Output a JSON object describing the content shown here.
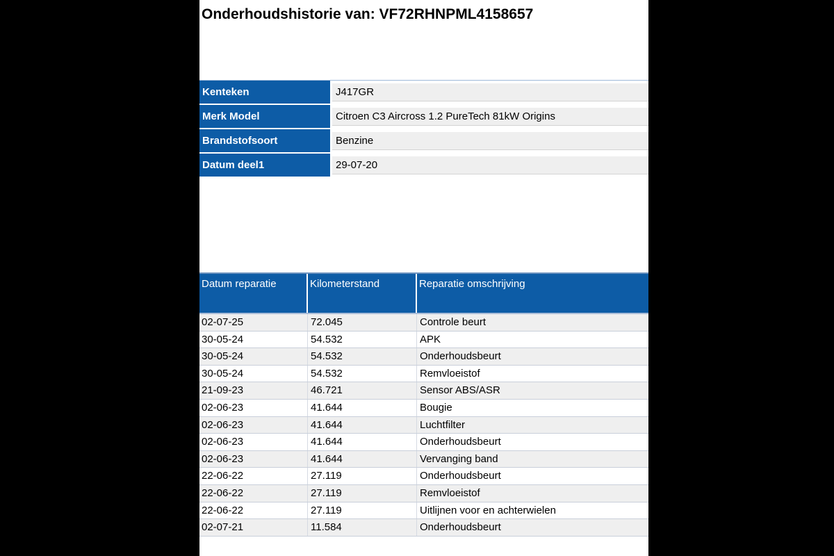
{
  "title": "Onderhoudshistorie van: VF72RHNPML4158657",
  "vehicle_info": {
    "rows": [
      {
        "label": "Kenteken",
        "value": "J417GR"
      },
      {
        "label": "Merk Model",
        "value": "Citroen C3 Aircross 1.2 PureTech 81kW Origins"
      },
      {
        "label": "Brandstofsoort",
        "value": "Benzine"
      },
      {
        "label": "Datum deel1",
        "value": "29-07-20"
      }
    ]
  },
  "history": {
    "columns": [
      "Datum reparatie",
      "Kilometerstand",
      "Reparatie omschrijving"
    ],
    "rows": [
      [
        "02-07-25",
        "72.045",
        "Controle beurt"
      ],
      [
        "30-05-24",
        "54.532",
        "APK"
      ],
      [
        "30-05-24",
        "54.532",
        "Onderhoudsbeurt"
      ],
      [
        "30-05-24",
        "54.532",
        "Remvloeistof"
      ],
      [
        "21-09-23",
        "46.721",
        "Sensor ABS/ASR"
      ],
      [
        "02-06-23",
        "41.644",
        "Bougie"
      ],
      [
        "02-06-23",
        "41.644",
        "Luchtfilter"
      ],
      [
        "02-06-23",
        "41.644",
        "Onderhoudsbeurt"
      ],
      [
        "02-06-23",
        "41.644",
        "Vervanging band"
      ],
      [
        "22-06-22",
        "27.119",
        "Onderhoudsbeurt"
      ],
      [
        "22-06-22",
        "27.119",
        "Remvloeistof"
      ],
      [
        "22-06-22",
        "27.119",
        "Uitlijnen voor en achterwielen"
      ],
      [
        "02-07-21",
        "11.584",
        "Onderhoudsbeurt"
      ]
    ]
  },
  "colors": {
    "accent_blue": "#0D5CA6",
    "alt_row_gray": "#EFEFEF",
    "grid_line": "#C9CFDA",
    "sidebar_black": "#000000"
  }
}
